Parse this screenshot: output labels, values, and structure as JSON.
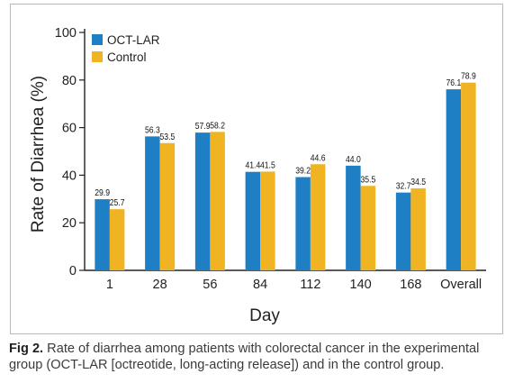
{
  "figure": {
    "caption_label": "Fig 2.",
    "caption_text": "Rate of diarrhea among patients with colorectal cancer in the experimental group (OCT-LAR [octreotide, long-acting release]) and in the control group."
  },
  "chart_data": {
    "type": "bar",
    "title": "",
    "xlabel": "Day",
    "ylabel": "Rate of Diarrhea (%)",
    "ylim": [
      0,
      100
    ],
    "yticks": [
      0,
      20,
      40,
      60,
      80,
      100
    ],
    "categories": [
      "1",
      "28",
      "56",
      "84",
      "112",
      "140",
      "168",
      "Overall"
    ],
    "series": [
      {
        "name": "OCT-LAR",
        "color": "#1f7fc4",
        "values": [
          29.9,
          56.3,
          57.9,
          41.4,
          39.2,
          44.0,
          32.7,
          76.1
        ],
        "labels": [
          "29.9",
          "56.3",
          "57.9",
          "41.4",
          "39.2",
          "44.0",
          "32.7",
          "76.1"
        ]
      },
      {
        "name": "Control",
        "color": "#f0b321",
        "values": [
          25.7,
          53.5,
          58.2,
          41.5,
          44.6,
          35.5,
          34.5,
          78.9
        ],
        "labels": [
          "25.7",
          "53.5",
          "58.2",
          "41.5",
          "44.6",
          "35.5",
          "34.5",
          "78.9"
        ]
      }
    ],
    "legend": "top-left",
    "grid": false
  }
}
